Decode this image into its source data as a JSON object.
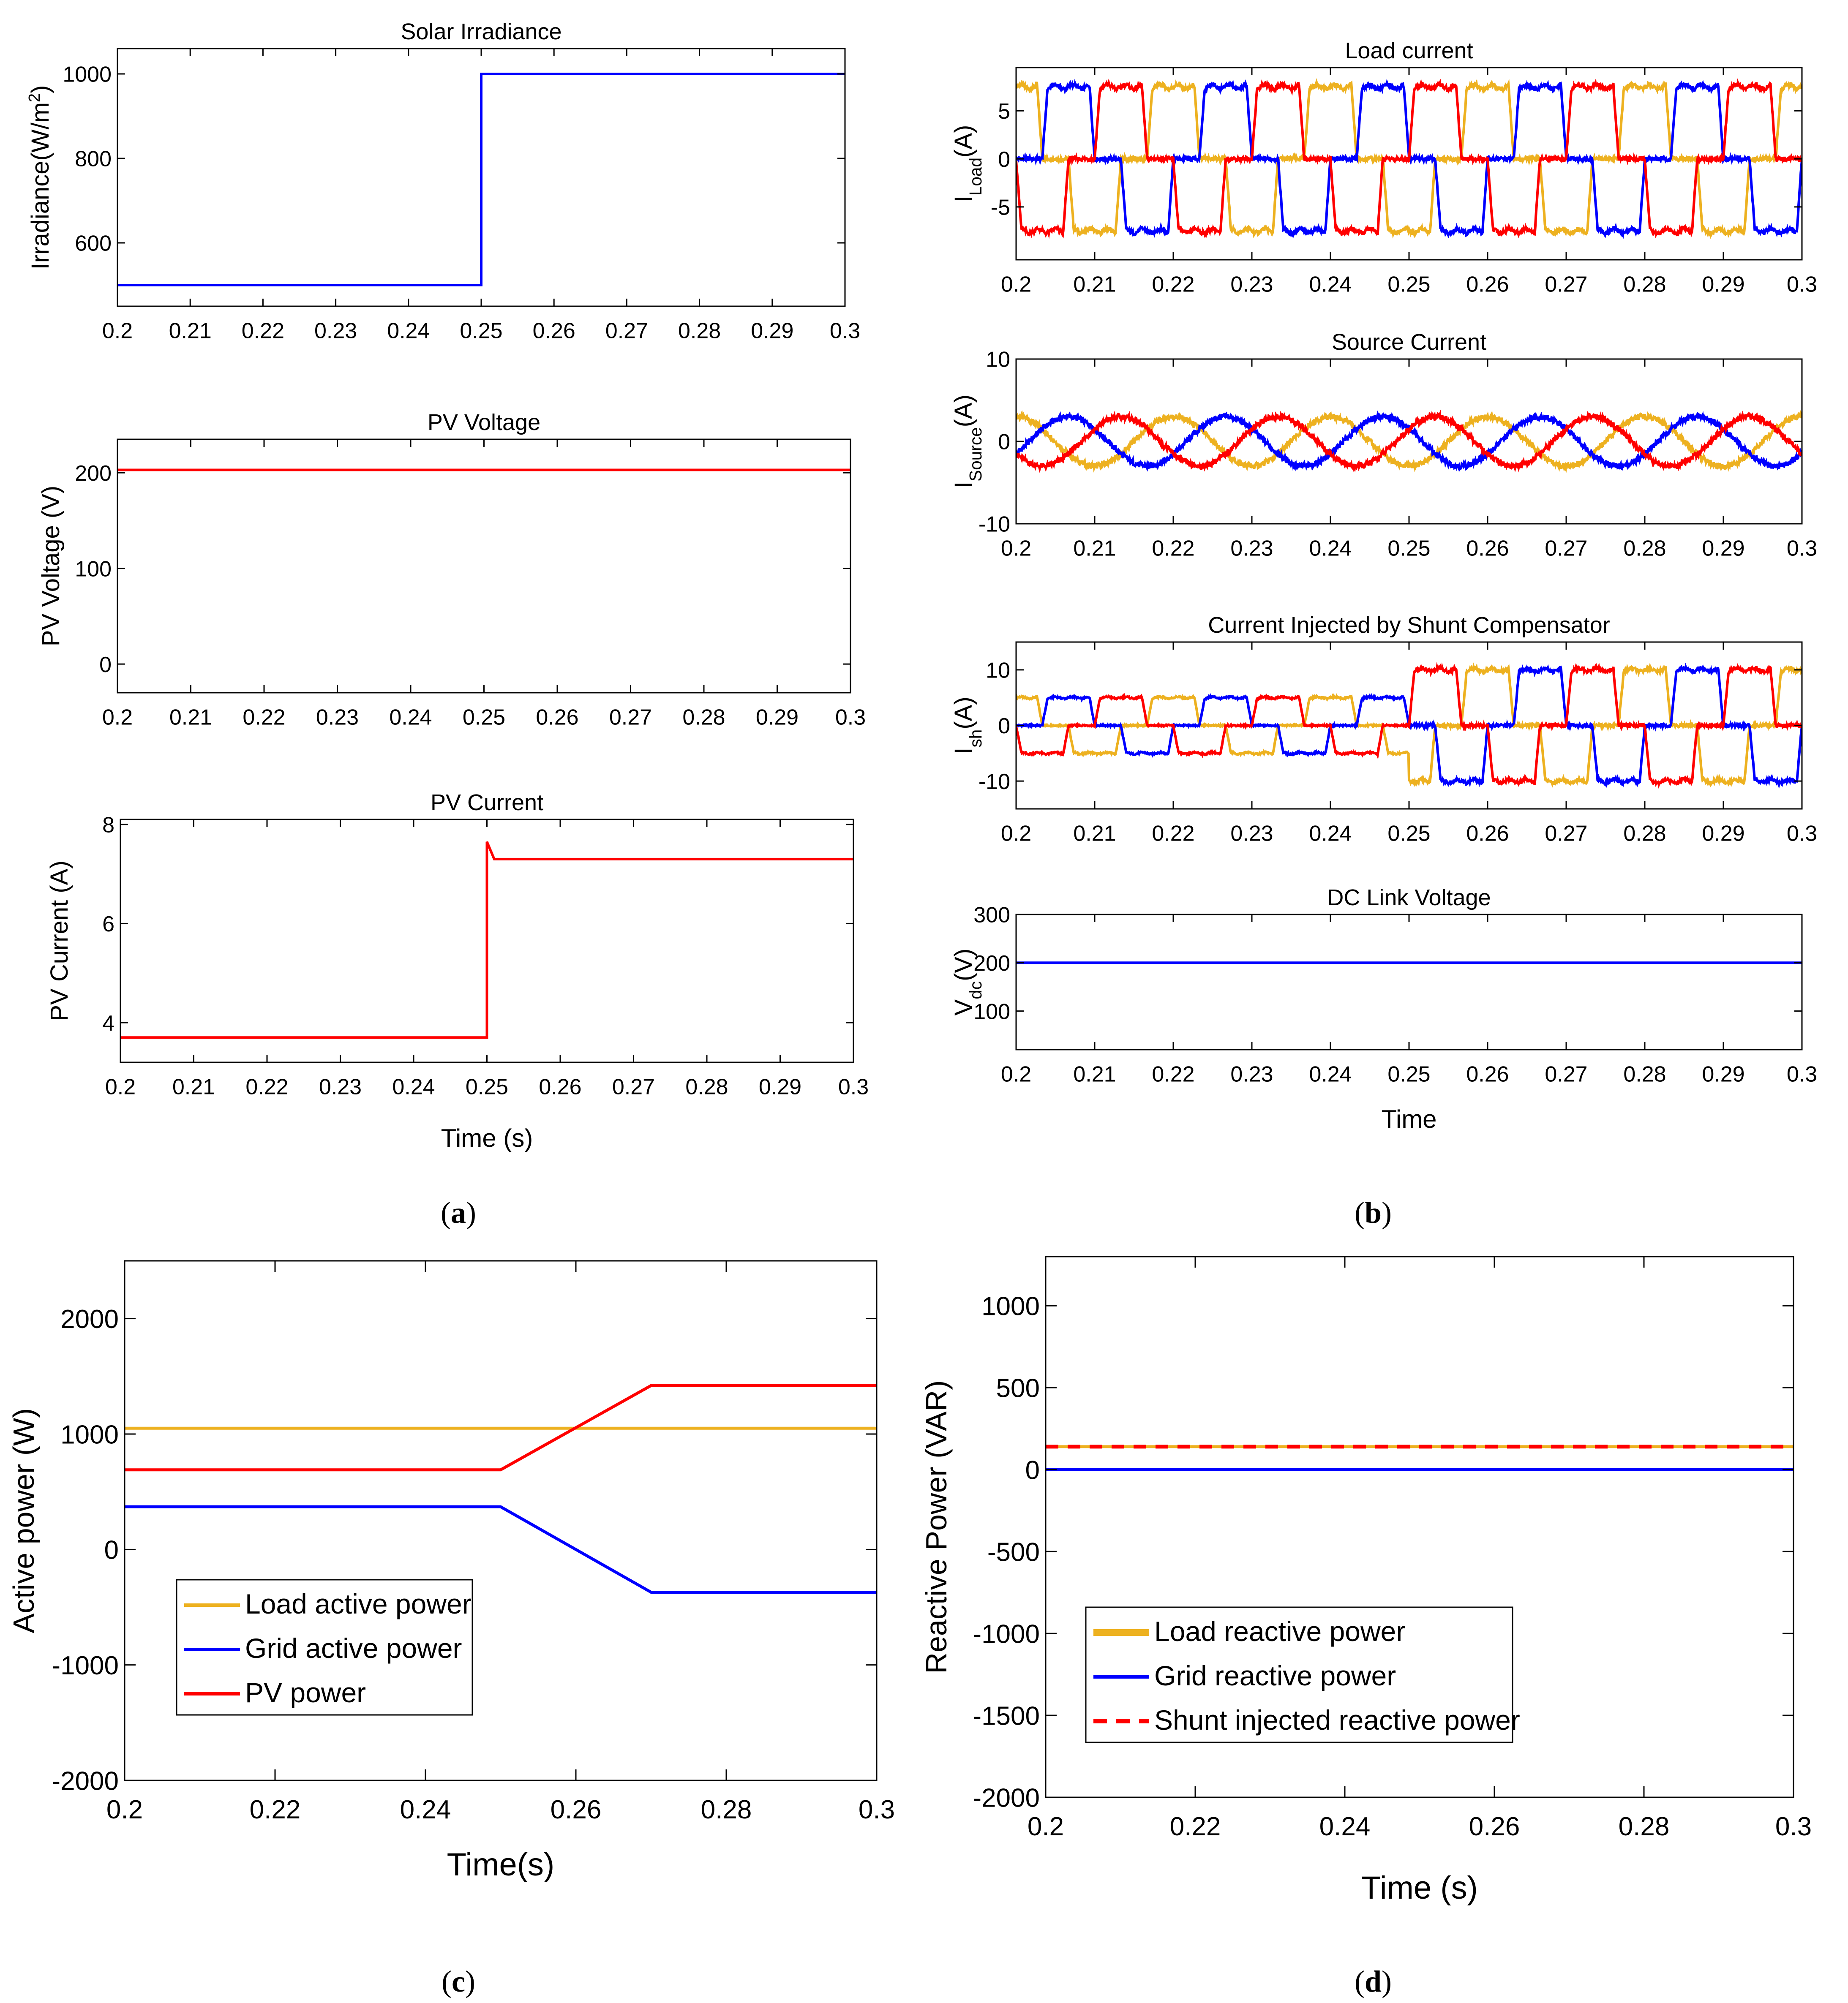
{
  "colors": {
    "yellow": "#EDB120",
    "blue": "#0000FF",
    "red": "#FF0000",
    "axis": "#000000"
  },
  "panel_labels": {
    "a": "a",
    "b": "b",
    "c": "c",
    "d": "d"
  },
  "chart_data": [
    {
      "id": "irr",
      "type": "line",
      "title": "Solar Irradiance",
      "ylabel": "Irradiance(W/m",
      "ylabel_sup": "2",
      "ylabel_tail": ")",
      "xlim": [
        0.2,
        0.3
      ],
      "ylim": [
        450,
        1060
      ],
      "xticks": [
        "0.2",
        "0.21",
        "0.22",
        "0.23",
        "0.24",
        "0.25",
        "0.26",
        "0.27",
        "0.28",
        "0.29",
        "0.3"
      ],
      "yticks": [
        600,
        800,
        1000
      ],
      "series": [
        {
          "name": "Irradiance",
          "color": "blue",
          "x": [
            0.2,
            0.25,
            0.25,
            0.3
          ],
          "y": [
            500,
            500,
            1000,
            1000
          ]
        }
      ]
    },
    {
      "id": "pvv",
      "type": "line",
      "title": "PV Voltage",
      "ylabel": "PV Voltage (V)",
      "xlim": [
        0.2,
        0.3
      ],
      "ylim": [
        -30,
        235
      ],
      "xticks": [
        "0.2",
        "0.21",
        "0.22",
        "0.23",
        "0.24",
        "0.25",
        "0.26",
        "0.27",
        "0.28",
        "0.29",
        "0.3"
      ],
      "yticks": [
        0,
        100,
        200
      ],
      "series": [
        {
          "name": "PV voltage",
          "color": "red",
          "x": [
            0.2,
            0.3
          ],
          "y": [
            203,
            203
          ]
        }
      ]
    },
    {
      "id": "pvi",
      "type": "line",
      "title": "PV Current",
      "ylabel": "PV Current (A)",
      "xlabel": "Time (s)",
      "xlim": [
        0.2,
        0.3
      ],
      "ylim": [
        3.2,
        8.1
      ],
      "xticks": [
        "0.2",
        "0.21",
        "0.22",
        "0.23",
        "0.24",
        "0.25",
        "0.26",
        "0.27",
        "0.28",
        "0.29",
        "0.3"
      ],
      "yticks": [
        4,
        6,
        8
      ],
      "series": [
        {
          "name": "PV current",
          "color": "red",
          "x": [
            0.2,
            0.25,
            0.25,
            0.251,
            0.3
          ],
          "y": [
            3.7,
            3.7,
            7.65,
            7.3,
            7.3
          ]
        }
      ]
    },
    {
      "id": "iload",
      "type": "line",
      "title": "Load current",
      "ylabel": "I",
      "ylabel_sub": "Load",
      "ylabel_tail": "(A)",
      "xlim": [
        0.2,
        0.3
      ],
      "ylim": [
        -10.5,
        9.5
      ],
      "xticks": [
        "0.2",
        "0.21",
        "0.22",
        "0.23",
        "0.24",
        "0.25",
        "0.26",
        "0.27",
        "0.28",
        "0.29",
        "0.3"
      ],
      "yticks": [
        -5,
        0,
        5
      ],
      "waves": [
        {
          "color": "yellow",
          "kind": "six_step",
          "amp": 7.5,
          "phase_deg": 0
        },
        {
          "color": "blue",
          "kind": "six_step",
          "amp": 7.5,
          "phase_deg": -120
        },
        {
          "color": "red",
          "kind": "six_step",
          "amp": 7.5,
          "phase_deg": 120
        }
      ]
    },
    {
      "id": "isrc",
      "type": "line",
      "title": "Source Current",
      "ylabel": "I",
      "ylabel_sub": "Source",
      "ylabel_tail": "(A)",
      "xlim": [
        0.2,
        0.3
      ],
      "ylim": [
        -10,
        10
      ],
      "xticks": [
        "0.2",
        "0.21",
        "0.22",
        "0.23",
        "0.24",
        "0.25",
        "0.26",
        "0.27",
        "0.28",
        "0.29",
        "0.3"
      ],
      "yticks": [
        -10,
        0,
        10
      ],
      "waves": [
        {
          "color": "yellow",
          "kind": "sine",
          "amp": 3,
          "phase_deg": 0
        },
        {
          "color": "blue",
          "kind": "sine",
          "amp": 3,
          "phase_deg": -120
        },
        {
          "color": "red",
          "kind": "sine",
          "amp": 3,
          "phase_deg": 120
        }
      ]
    },
    {
      "id": "ish",
      "type": "line",
      "title": "Current Injected by Shunt Compensator",
      "ylabel": "I",
      "ylabel_sub": "sh",
      "ylabel_tail": "(A)",
      "xlim": [
        0.2,
        0.3
      ],
      "ylim": [
        -15,
        15
      ],
      "xticks": [
        "0.2",
        "0.21",
        "0.22",
        "0.23",
        "0.24",
        "0.25",
        "0.26",
        "0.27",
        "0.28",
        "0.29",
        "0.3"
      ],
      "yticks": [
        -10,
        0,
        10
      ],
      "step_time": 0.25,
      "amp_before": 5,
      "amp_after": 10,
      "waves": [
        {
          "color": "yellow",
          "kind": "six_step",
          "phase_deg": 0
        },
        {
          "color": "blue",
          "kind": "six_step",
          "phase_deg": -120
        },
        {
          "color": "red",
          "kind": "six_step",
          "phase_deg": 120
        }
      ]
    },
    {
      "id": "vdc",
      "type": "line",
      "title": "DC Link Voltage",
      "ylabel": "V",
      "ylabel_sub": "dc",
      "ylabel_tail": "(V)",
      "xlabel": "Time",
      "xlim": [
        0.2,
        0.3
      ],
      "ylim": [
        20,
        300
      ],
      "xticks": [
        "0.2",
        "0.21",
        "0.22",
        "0.23",
        "0.24",
        "0.25",
        "0.26",
        "0.27",
        "0.28",
        "0.29",
        "0.3"
      ],
      "yticks": [
        100,
        200,
        300
      ],
      "series": [
        {
          "name": "Vdc",
          "color": "blue",
          "x": [
            0.2,
            0.3
          ],
          "y": [
            200,
            200
          ]
        }
      ]
    },
    {
      "id": "pact",
      "type": "line",
      "ylabel": "Active power (W)",
      "xlabel": "Time(s)",
      "xlim": [
        0.2,
        0.3
      ],
      "ylim": [
        -2000,
        2500
      ],
      "xticks": [
        "0.2",
        "0.22",
        "0.24",
        "0.26",
        "0.28",
        "0.3"
      ],
      "yticks": [
        -2000,
        -1000,
        0,
        1000,
        2000
      ],
      "series": [
        {
          "name": "Load active power",
          "color": "yellow",
          "x": [
            0.2,
            0.3
          ],
          "y": [
            1050,
            1050
          ]
        },
        {
          "name": "Grid active power",
          "color": "blue",
          "x": [
            0.2,
            0.25,
            0.27,
            0.3
          ],
          "y": [
            370,
            370,
            -370,
            -370
          ]
        },
        {
          "name": "PV power",
          "color": "red",
          "x": [
            0.2,
            0.25,
            0.27,
            0.3
          ],
          "y": [
            690,
            690,
            1420,
            1420
          ]
        }
      ],
      "legend": {
        "position": "lower-left",
        "entries": [
          "Load active power",
          "Grid active power",
          "PV power"
        ]
      }
    },
    {
      "id": "preact",
      "type": "line",
      "ylabel": "Reactive Power (VAR)",
      "xlabel": "Time (s)",
      "xlim": [
        0.2,
        0.3
      ],
      "ylim": [
        -2000,
        1300
      ],
      "xticks": [
        "0.2",
        "0.22",
        "0.24",
        "0.26",
        "0.28",
        "0.3"
      ],
      "yticks": [
        -2000,
        -1500,
        -1000,
        -500,
        0,
        500,
        1000
      ],
      "series": [
        {
          "name": "Load reactive power",
          "color": "yellow",
          "x": [
            0.2,
            0.3
          ],
          "y": [
            140,
            140
          ]
        },
        {
          "name": "Grid reactive power",
          "color": "blue",
          "x": [
            0.2,
            0.3
          ],
          "y": [
            0,
            0
          ]
        },
        {
          "name": "Shunt injected reactive power",
          "color": "red",
          "dashed": true,
          "x": [
            0.2,
            0.3
          ],
          "y": [
            140,
            140
          ]
        }
      ],
      "legend": {
        "position": "lower-left",
        "entries": [
          "Load reactive power",
          "Grid reactive power",
          "Shunt injected reactive power"
        ]
      }
    }
  ]
}
